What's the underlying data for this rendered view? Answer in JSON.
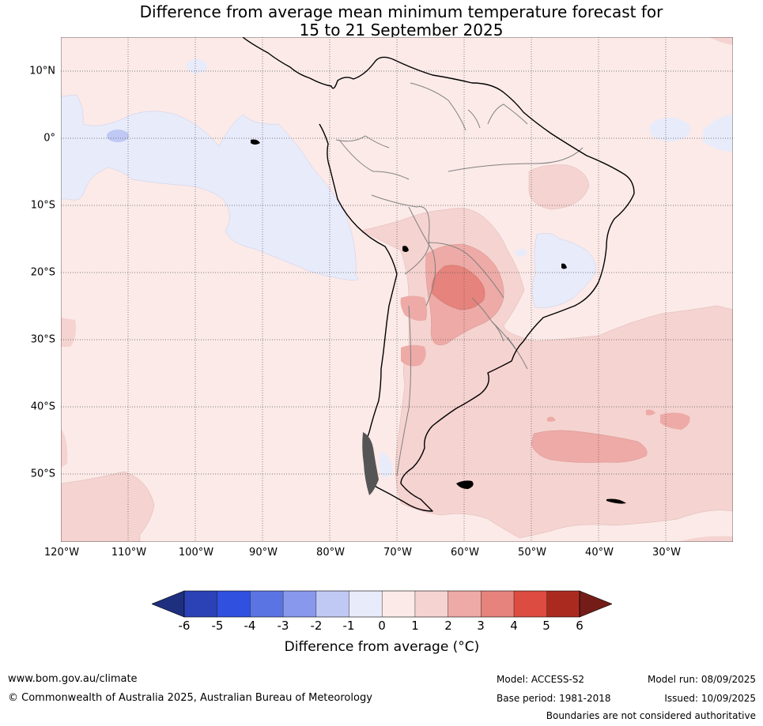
{
  "title_line1": "Difference from average mean minimum temperature forecast for",
  "title_line2": "15 to 21 September 2025",
  "lat_labels": [
    "10°N",
    "0°",
    "10°S",
    "20°S",
    "30°S",
    "40°S",
    "50°S"
  ],
  "lon_labels": [
    "120°W",
    "110°W",
    "100°W",
    "90°W",
    "80°W",
    "70°W",
    "60°W",
    "50°W",
    "40°W",
    "30°W"
  ],
  "colors": {
    "ocean_background": "#fbeae8",
    "level_m1_0": "#e8ebfa",
    "level_0_1": "#fbeae8",
    "level_1_2": "#f5d3d0",
    "level_2_3": "#edaaa6",
    "level_3_4": "#e6837c",
    "coastline": "#000000",
    "borders": "#808080",
    "colorbar": [
      "#1f2f80",
      "#2a42b5",
      "#3050e0",
      "#5b74e4",
      "#8898ec",
      "#c0c8f4",
      "#e8ebfa",
      "#fbeae8",
      "#f5d3d0",
      "#edaaa6",
      "#e6837c",
      "#dc4c40",
      "#ab2a20",
      "#741d18"
    ]
  },
  "colorbar_ticks": [
    "-6",
    "-5",
    "-4",
    "-3",
    "-2",
    "-1",
    "0",
    "1",
    "2",
    "3",
    "4",
    "5",
    "6"
  ],
  "colorbar_label": "Difference from average (°C)",
  "footer": {
    "website": "www.bom.gov.au/climate",
    "copyright": "© Commonwealth of Australia 2025, Australian Bureau of Meteorology",
    "model": "Model: ACCESS-S2",
    "base_period": "Base period: 1981-2018",
    "model_run": "Model run: 08/09/2025",
    "issued": "Issued: 10/09/2025",
    "disclaimer": "Boundaries are not considered authoritative"
  }
}
